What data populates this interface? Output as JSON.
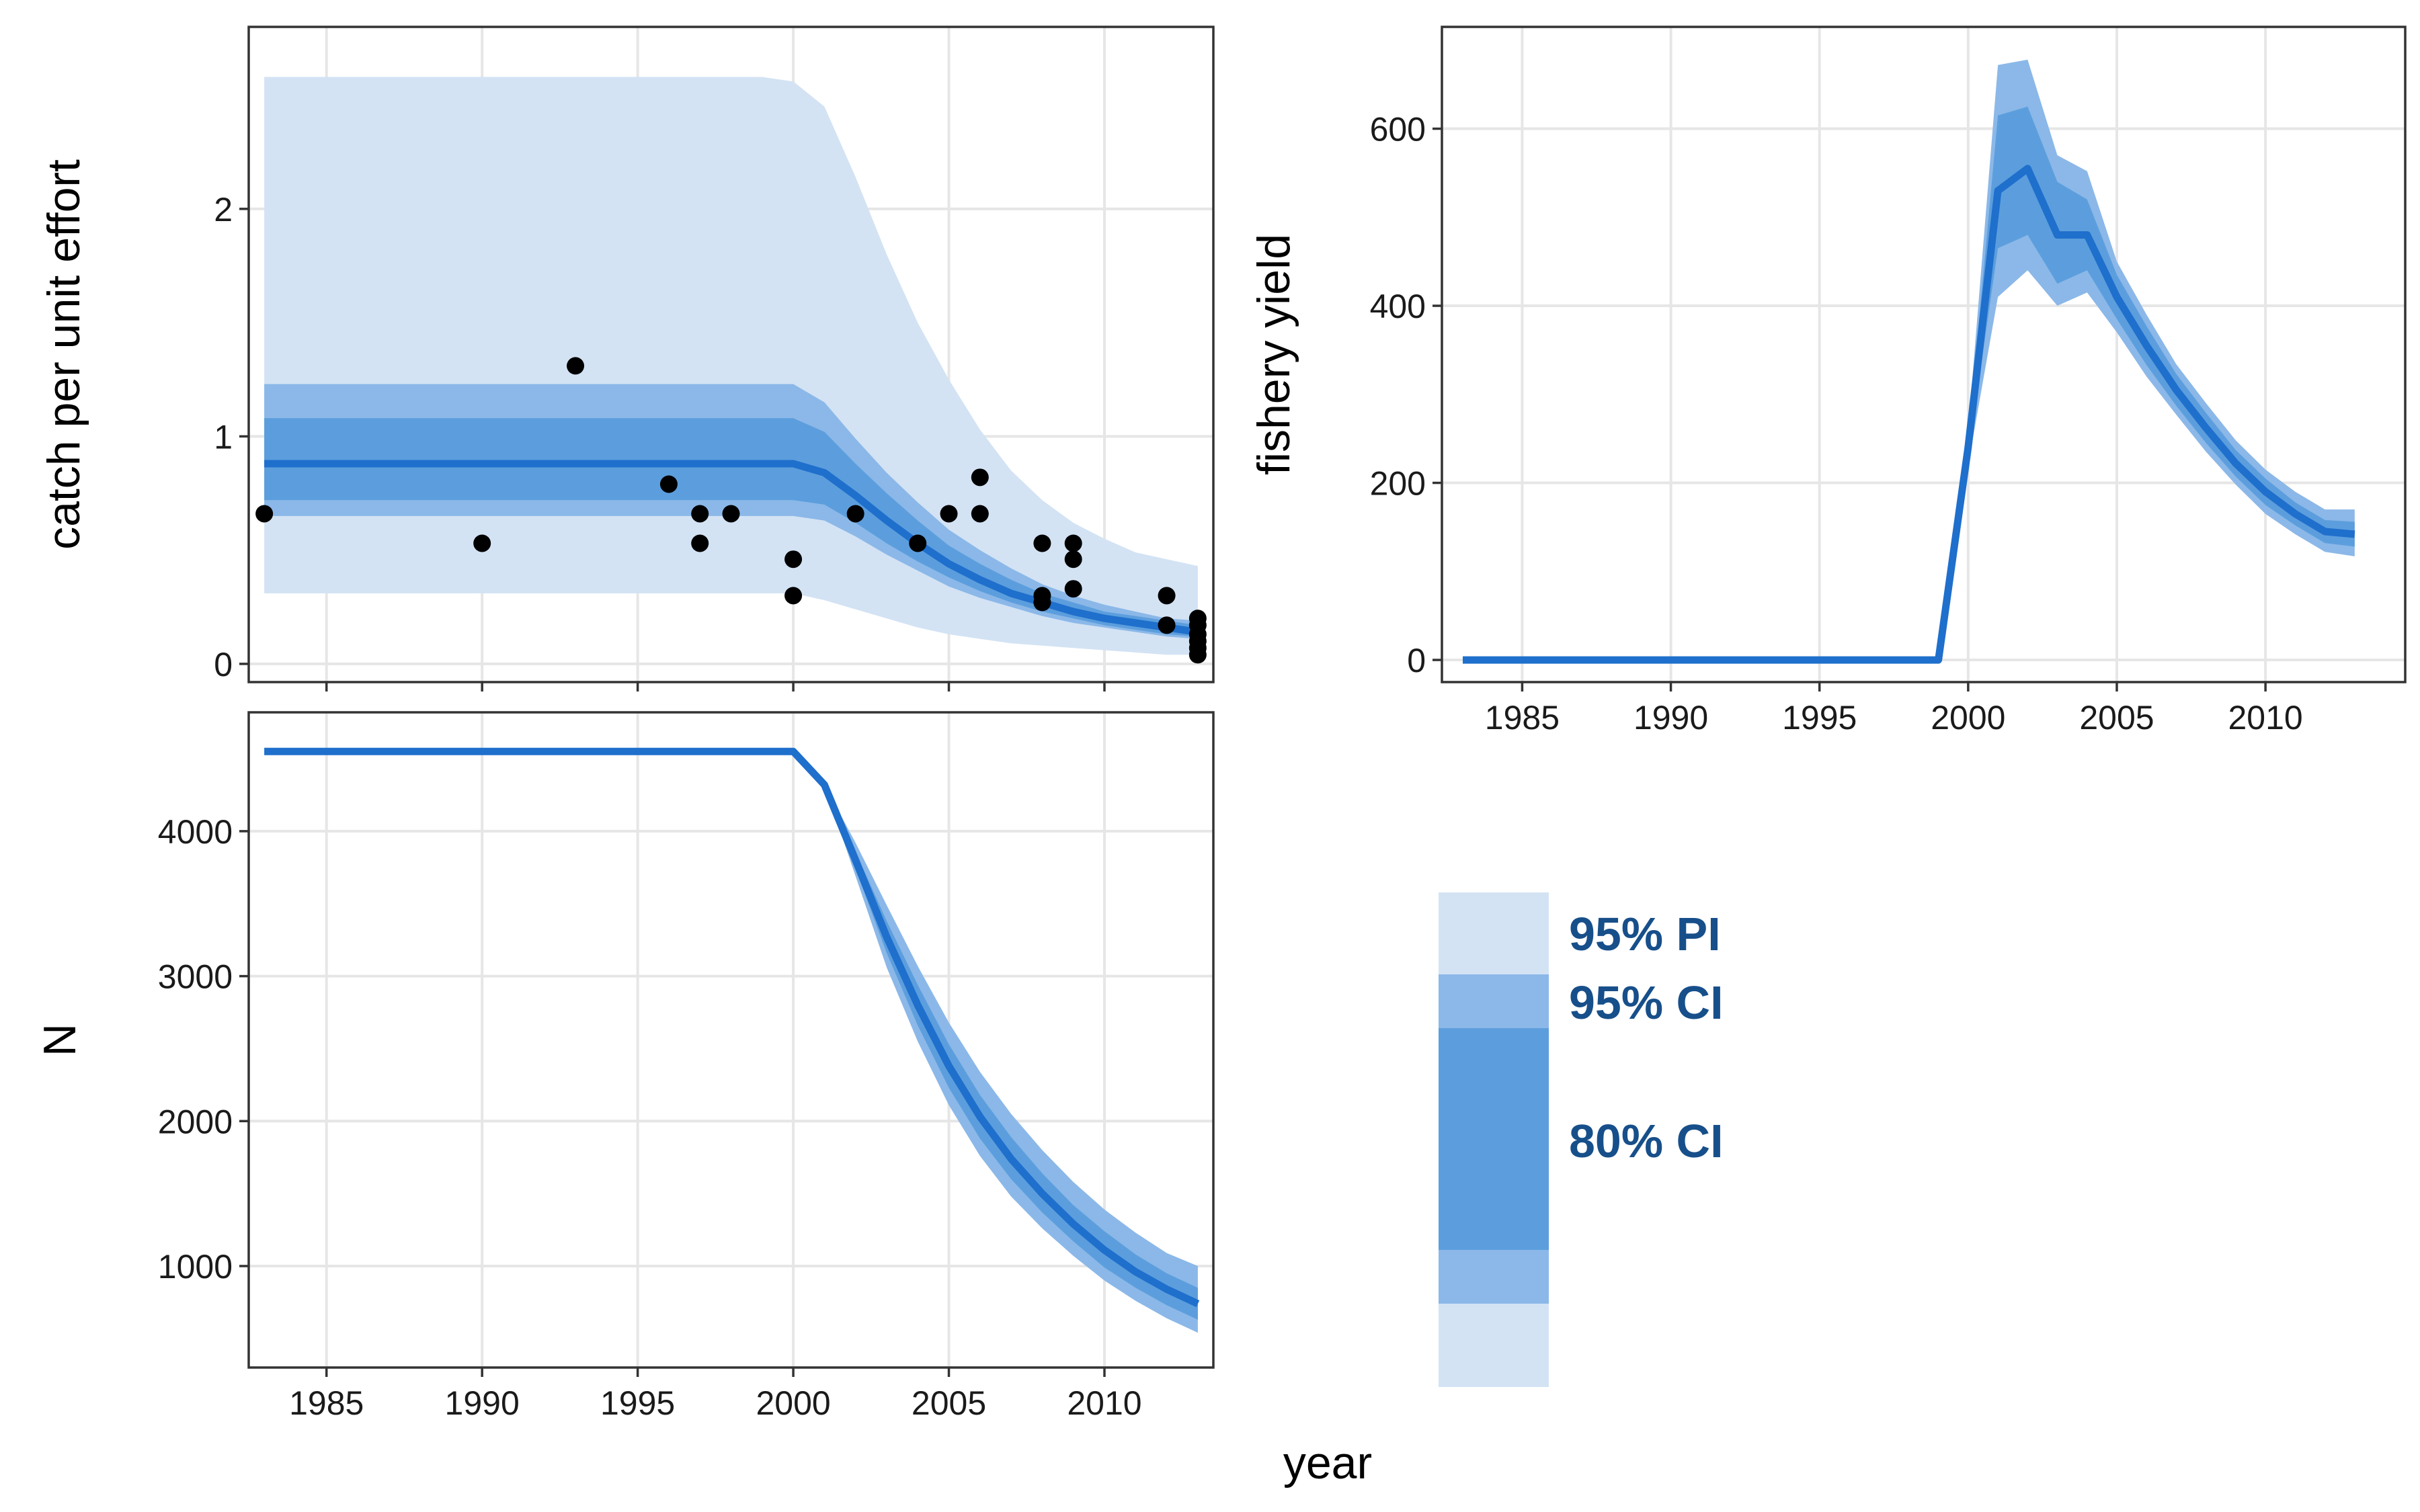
{
  "chart_data": [
    {
      "type": "line",
      "id": "cpue",
      "ylabel": "catch per unit effort",
      "xlim": [
        1982.5,
        2013.5
      ],
      "ylim": [
        -0.08,
        2.8
      ],
      "yticks": [
        0,
        1,
        2
      ],
      "xticks": [
        1985,
        1990,
        1995,
        2000,
        2005,
        2010
      ],
      "grid": true,
      "x": [
        1983,
        1984,
        1985,
        1986,
        1987,
        1988,
        1989,
        1990,
        1991,
        1992,
        1993,
        1994,
        1995,
        1996,
        1997,
        1998,
        1999,
        2000,
        2001,
        2002,
        2003,
        2004,
        2005,
        2006,
        2007,
        2008,
        2009,
        2010,
        2011,
        2012,
        2013
      ],
      "median": [
        0.88,
        0.88,
        0.88,
        0.88,
        0.88,
        0.88,
        0.88,
        0.88,
        0.88,
        0.88,
        0.88,
        0.88,
        0.88,
        0.88,
        0.88,
        0.88,
        0.88,
        0.88,
        0.84,
        0.74,
        0.63,
        0.53,
        0.44,
        0.37,
        0.31,
        0.27,
        0.23,
        0.2,
        0.18,
        0.16,
        0.14
      ],
      "ci80": {
        "lower": [
          0.72,
          0.72,
          0.72,
          0.72,
          0.72,
          0.72,
          0.72,
          0.72,
          0.72,
          0.72,
          0.72,
          0.72,
          0.72,
          0.72,
          0.72,
          0.72,
          0.72,
          0.72,
          0.7,
          0.62,
          0.53,
          0.45,
          0.38,
          0.32,
          0.27,
          0.23,
          0.2,
          0.17,
          0.15,
          0.13,
          0.12
        ],
        "upper": [
          1.08,
          1.08,
          1.08,
          1.08,
          1.08,
          1.08,
          1.08,
          1.08,
          1.08,
          1.08,
          1.08,
          1.08,
          1.08,
          1.08,
          1.08,
          1.08,
          1.08,
          1.08,
          1.02,
          0.88,
          0.75,
          0.63,
          0.52,
          0.44,
          0.37,
          0.31,
          0.27,
          0.23,
          0.21,
          0.19,
          0.17
        ]
      },
      "ci95": {
        "lower": [
          0.65,
          0.65,
          0.65,
          0.65,
          0.65,
          0.65,
          0.65,
          0.65,
          0.65,
          0.65,
          0.65,
          0.65,
          0.65,
          0.65,
          0.65,
          0.65,
          0.65,
          0.65,
          0.63,
          0.56,
          0.48,
          0.41,
          0.34,
          0.29,
          0.25,
          0.21,
          0.18,
          0.16,
          0.14,
          0.12,
          0.11
        ],
        "upper": [
          1.23,
          1.23,
          1.23,
          1.23,
          1.23,
          1.23,
          1.23,
          1.23,
          1.23,
          1.23,
          1.23,
          1.23,
          1.23,
          1.23,
          1.23,
          1.23,
          1.23,
          1.23,
          1.15,
          0.99,
          0.84,
          0.71,
          0.59,
          0.5,
          0.42,
          0.35,
          0.3,
          0.26,
          0.23,
          0.2,
          0.19
        ]
      },
      "pi95": {
        "lower": [
          0.31,
          0.31,
          0.31,
          0.31,
          0.31,
          0.31,
          0.31,
          0.31,
          0.31,
          0.31,
          0.31,
          0.31,
          0.31,
          0.31,
          0.31,
          0.31,
          0.31,
          0.31,
          0.28,
          0.24,
          0.2,
          0.16,
          0.13,
          0.11,
          0.09,
          0.08,
          0.07,
          0.06,
          0.05,
          0.04,
          0.04
        ],
        "upper": [
          2.58,
          2.58,
          2.58,
          2.58,
          2.58,
          2.58,
          2.58,
          2.58,
          2.58,
          2.58,
          2.58,
          2.58,
          2.58,
          2.58,
          2.58,
          2.58,
          2.58,
          2.56,
          2.45,
          2.14,
          1.8,
          1.5,
          1.25,
          1.03,
          0.85,
          0.72,
          0.62,
          0.55,
          0.49,
          0.46,
          0.43
        ]
      },
      "points": [
        [
          1983,
          0.66
        ],
        [
          1990,
          0.53
        ],
        [
          1993,
          1.31
        ],
        [
          1996,
          0.79
        ],
        [
          1997,
          0.66
        ],
        [
          1997,
          0.53
        ],
        [
          1998,
          0.66
        ],
        [
          2000,
          0.46
        ],
        [
          2000,
          0.3
        ],
        [
          2002,
          0.66
        ],
        [
          2004,
          0.53
        ],
        [
          2005,
          0.66
        ],
        [
          2006,
          0.82
        ],
        [
          2006,
          0.66
        ],
        [
          2008,
          0.53
        ],
        [
          2008,
          0.3
        ],
        [
          2008,
          0.27
        ],
        [
          2009,
          0.53
        ],
        [
          2009,
          0.46
        ],
        [
          2009,
          0.33
        ],
        [
          2012,
          0.3
        ],
        [
          2012,
          0.17
        ],
        [
          2013,
          0.2
        ],
        [
          2013,
          0.17
        ],
        [
          2013,
          0.13
        ],
        [
          2013,
          0.1
        ],
        [
          2013,
          0.07
        ],
        [
          2013,
          0.04
        ]
      ]
    },
    {
      "type": "line",
      "id": "yield",
      "ylabel": "fishery yield",
      "xlim": [
        1982.3,
        2014.7
      ],
      "ylim": [
        -25,
        715
      ],
      "yticks": [
        0,
        200,
        400,
        600
      ],
      "xticks": [
        1985,
        1990,
        1995,
        2000,
        2005,
        2010
      ],
      "grid": true,
      "x": [
        1983,
        1984,
        1985,
        1986,
        1987,
        1988,
        1989,
        1990,
        1991,
        1992,
        1993,
        1994,
        1995,
        1996,
        1997,
        1998,
        1999,
        2000,
        2001,
        2002,
        2003,
        2004,
        2005,
        2006,
        2007,
        2008,
        2009,
        2010,
        2011,
        2012,
        2013
      ],
      "median": [
        0,
        0,
        0,
        0,
        0,
        0,
        0,
        0,
        0,
        0,
        0,
        0,
        0,
        0,
        0,
        0,
        0,
        240,
        530,
        555,
        480,
        480,
        410,
        355,
        305,
        262,
        222,
        190,
        165,
        145,
        142
      ],
      "ci80": {
        "lower": [
          0,
          0,
          0,
          0,
          0,
          0,
          0,
          0,
          0,
          0,
          0,
          0,
          0,
          0,
          0,
          0,
          0,
          230,
          465,
          480,
          425,
          440,
          385,
          333,
          287,
          245,
          207,
          175,
          152,
          132,
          128
        ],
        "upper": [
          0,
          0,
          0,
          0,
          0,
          0,
          0,
          0,
          0,
          0,
          0,
          0,
          0,
          0,
          0,
          0,
          0,
          250,
          615,
          625,
          540,
          520,
          435,
          377,
          323,
          279,
          237,
          205,
          178,
          158,
          156
        ]
      },
      "ci95": {
        "lower": [
          0,
          0,
          0,
          0,
          0,
          0,
          0,
          0,
          0,
          0,
          0,
          0,
          0,
          0,
          0,
          0,
          0,
          220,
          410,
          440,
          400,
          415,
          370,
          320,
          277,
          235,
          198,
          165,
          142,
          122,
          117
        ],
        "upper": [
          0,
          0,
          0,
          0,
          0,
          0,
          0,
          0,
          0,
          0,
          0,
          0,
          0,
          0,
          0,
          0,
          0,
          260,
          672,
          678,
          570,
          552,
          450,
          390,
          334,
          290,
          248,
          215,
          190,
          170,
          170
        ]
      }
    },
    {
      "type": "line",
      "id": "abundance",
      "ylabel": "N",
      "xlim": [
        1982.5,
        2013.5
      ],
      "ylim": [
        300,
        4820
      ],
      "yticks": [
        1000,
        2000,
        3000,
        4000
      ],
      "xticks": [
        1985,
        1990,
        1995,
        2000,
        2005,
        2010
      ],
      "grid": true,
      "x": [
        1983,
        1984,
        1985,
        1986,
        1987,
        1988,
        1989,
        1990,
        1991,
        1992,
        1993,
        1994,
        1995,
        1996,
        1997,
        1998,
        1999,
        2000,
        2001,
        2002,
        2003,
        2004,
        2005,
        2006,
        2007,
        2008,
        2009,
        2010,
        2011,
        2012,
        2013
      ],
      "median": [
        4550,
        4550,
        4550,
        4550,
        4550,
        4550,
        4550,
        4550,
        4550,
        4550,
        4550,
        4550,
        4550,
        4550,
        4550,
        4550,
        4550,
        4550,
        4320,
        3800,
        3270,
        2800,
        2380,
        2030,
        1740,
        1500,
        1290,
        1110,
        960,
        840,
        740
      ],
      "ci80": {
        "lower": [
          4550,
          4550,
          4550,
          4550,
          4550,
          4550,
          4550,
          4550,
          4550,
          4550,
          4550,
          4550,
          4550,
          4550,
          4550,
          4550,
          4550,
          4550,
          4320,
          3740,
          3160,
          2660,
          2230,
          1880,
          1600,
          1370,
          1170,
          990,
          850,
          730,
          630
        ],
        "upper": [
          4550,
          4550,
          4550,
          4550,
          4550,
          4550,
          4550,
          4550,
          4550,
          4550,
          4550,
          4550,
          4550,
          4550,
          4550,
          4550,
          4550,
          4550,
          4320,
          3860,
          3380,
          2940,
          2530,
          2180,
          1890,
          1640,
          1420,
          1240,
          1080,
          950,
          850
        ]
      },
      "ci95": {
        "lower": [
          4550,
          4550,
          4550,
          4550,
          4550,
          4550,
          4550,
          4550,
          4550,
          4550,
          4550,
          4550,
          4550,
          4550,
          4550,
          4550,
          4550,
          4550,
          4320,
          3690,
          3060,
          2550,
          2110,
          1760,
          1480,
          1260,
          1070,
          900,
          760,
          640,
          540
        ],
        "upper": [
          4550,
          4550,
          4550,
          4550,
          4550,
          4550,
          4550,
          4550,
          4550,
          4550,
          4550,
          4550,
          4550,
          4550,
          4550,
          4550,
          4550,
          4550,
          4320,
          3920,
          3490,
          3070,
          2680,
          2340,
          2050,
          1800,
          1580,
          1390,
          1230,
          1090,
          1000
        ]
      }
    }
  ],
  "shared": {
    "xlabel": "year"
  },
  "legend": {
    "items": [
      {
        "label": "95% PI",
        "color": "#d3e3f4"
      },
      {
        "label": "95% CI",
        "color": "#8bb8e8"
      },
      {
        "label": "80% CI",
        "color": "#5c9edd"
      }
    ]
  },
  "colors": {
    "pi95": "#d3e3f4",
    "ci95": "#8bb8e8",
    "ci80": "#5c9edd",
    "line": "#1f6fcc",
    "points": "#000000",
    "grid": "#e6e6e6",
    "frame": "#333333"
  }
}
